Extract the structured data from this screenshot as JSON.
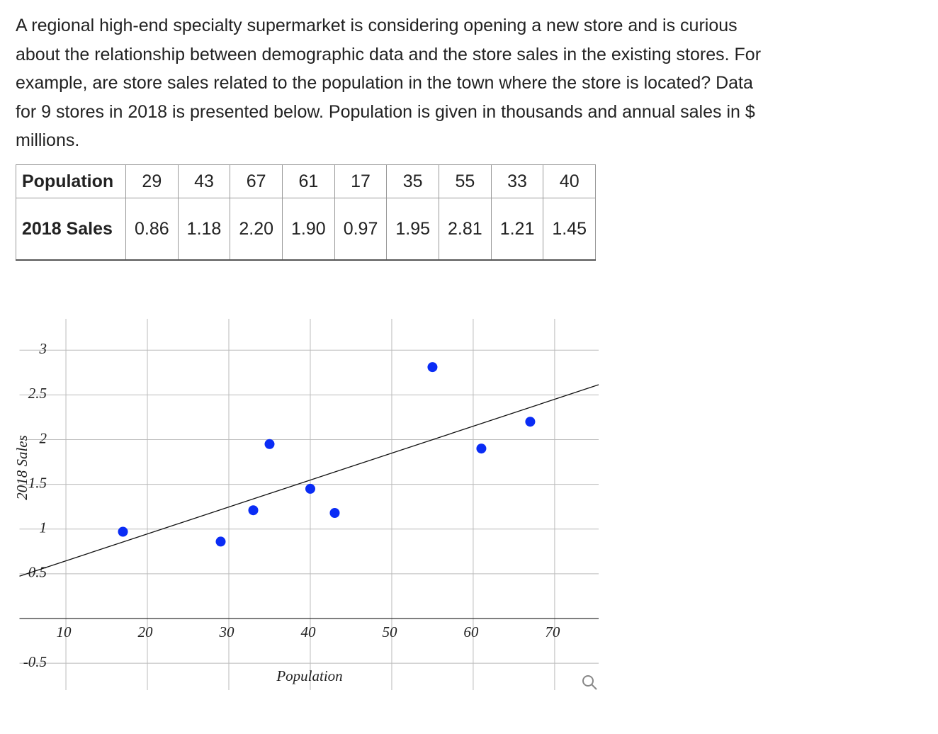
{
  "text": "A regional high-end specialty supermarket is considering opening a new store and is curious about the relationship between demographic data and the store sales in the existing stores. For example, are store sales related to the population in the town where the store is located? Data for 9 stores in 2018 is presented below. Population is given in thousands and annual sales in $ millions.",
  "table": {
    "rows": [
      [
        "Population",
        "29",
        "43",
        "67",
        "61",
        "17",
        "35",
        "55",
        "33",
        "40"
      ],
      [
        "2018 Sales",
        "0.86",
        "1.18",
        "2.20",
        "1.90",
        "0.97",
        "1.95",
        "2.81",
        "1.21",
        "1.45"
      ]
    ]
  },
  "chart_data": {
    "type": "scatter",
    "x_label": "Population",
    "y_label": "2018 Sales",
    "x": [
      29,
      43,
      67,
      61,
      17,
      35,
      55,
      33,
      40
    ],
    "values": [
      0.86,
      1.18,
      2.2,
      1.9,
      0.97,
      1.95,
      2.81,
      1.21,
      1.45
    ],
    "color": "#0a2cf5",
    "xlim": [
      4.3,
      75.4
    ],
    "ylim": [
      -0.8,
      3.35
    ],
    "xticks": [
      10,
      20,
      30,
      40,
      50,
      60,
      70
    ],
    "yticks": [
      -0.5,
      0.5,
      1,
      1.5,
      2,
      2.5,
      3
    ],
    "grid": true,
    "trendline": true
  }
}
